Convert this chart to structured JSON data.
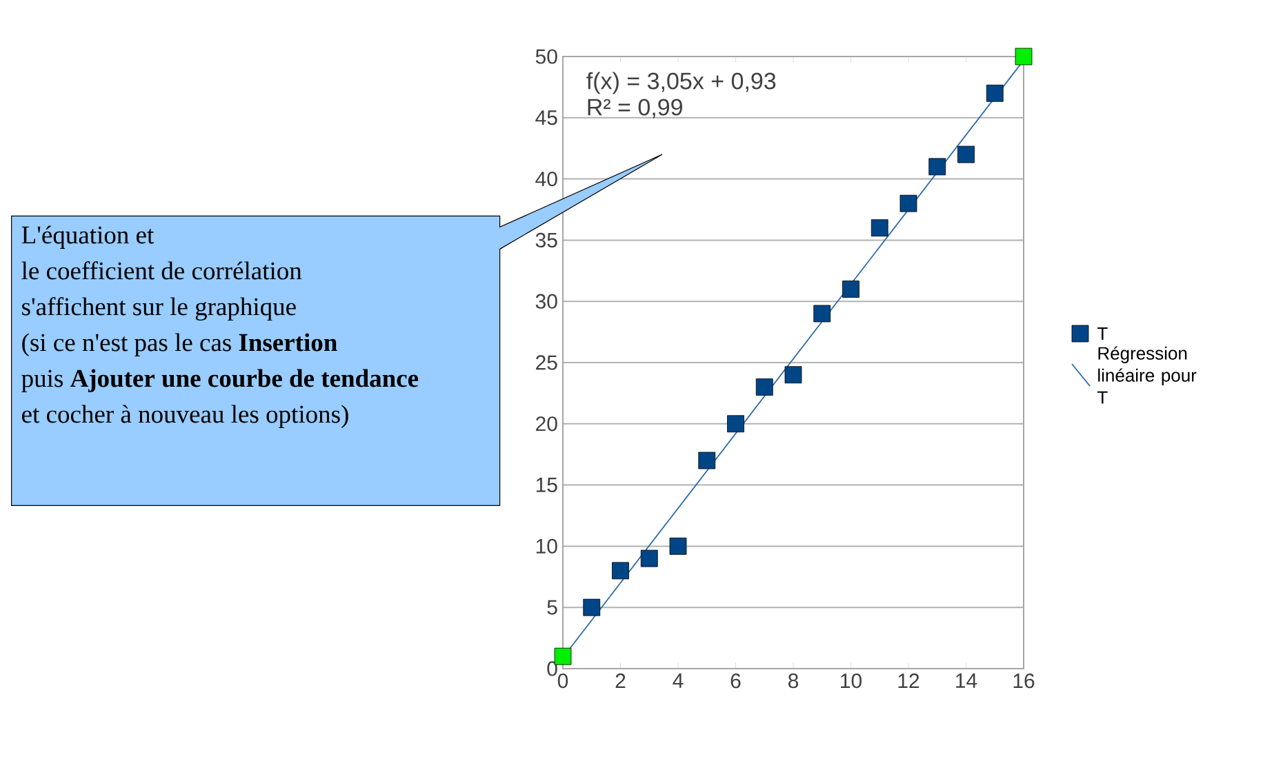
{
  "chart_data": {
    "type": "scatter",
    "series": [
      {
        "name": "T",
        "marker": "square",
        "color": "#004586",
        "colors": [
          "#00ee00",
          "#004586",
          "#004586",
          "#004586",
          "#004586",
          "#004586",
          "#004586",
          "#004586",
          "#004586",
          "#004586",
          "#004586",
          "#004586",
          "#004586",
          "#004586",
          "#004586",
          "#004586",
          "#00ee00"
        ],
        "x": [
          0,
          1,
          2,
          3,
          4,
          5,
          6,
          7,
          8,
          9,
          10,
          11,
          12,
          13,
          14,
          15,
          16
        ],
        "values": [
          1,
          5,
          8,
          9,
          10,
          17,
          20,
          23,
          24,
          29,
          31,
          36,
          38,
          41,
          42,
          47,
          50
        ]
      },
      {
        "name": "Régression linéaire pour T",
        "type": "line",
        "marker": "none",
        "color": "#2e6aa8",
        "x": [
          0,
          16
        ],
        "values": [
          0.9,
          49.7
        ]
      }
    ],
    "xlim": [
      0,
      16
    ],
    "xticks": [
      0,
      2,
      4,
      6,
      8,
      10,
      12,
      14,
      16
    ],
    "ylim": [
      0,
      50
    ],
    "yticks": [
      0,
      5,
      10,
      15,
      20,
      25,
      30,
      35,
      40,
      45,
      50
    ],
    "grid": "y",
    "legend": "right",
    "annotations": [
      "f(x) = 3,05x  + 0,93",
      "R² =  0,99",
      "L'équation et",
      "le coefficient de corrélation",
      "s'affichent sur le graphique",
      "(si ce n'est pas le cas **Insertion**",
      "puis **Ajouter une courbe de tendance**",
      "et cocher à nouveau les options)"
    ]
  }
}
